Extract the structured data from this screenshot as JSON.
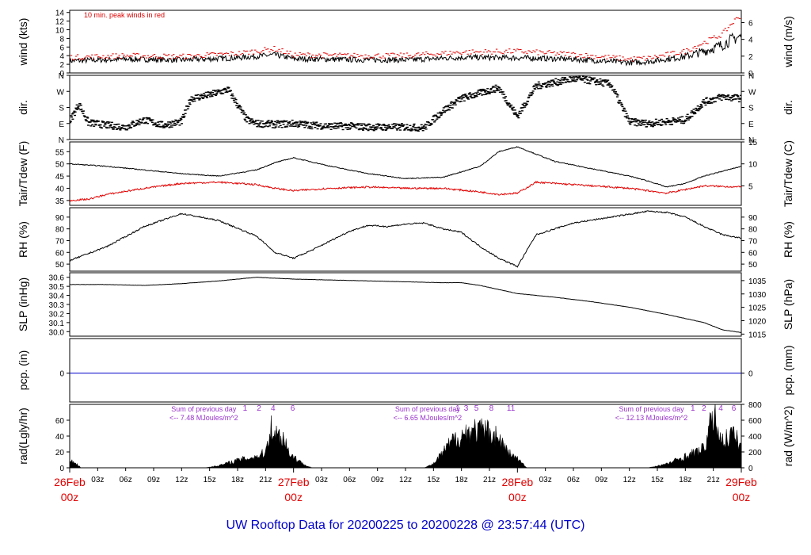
{
  "title": "UW Rooftop Data for 20200225  to  20200228 @ 23:57:44  (UTC)",
  "colors": {
    "primary": "#000000",
    "peak": "#e00000",
    "dewpoint": "#e00000",
    "precip": "#0000cc",
    "annotation": "#9933cc",
    "date": "#e00000",
    "title": "#0000cc"
  },
  "chart_data": {
    "type": "line",
    "x_hours": [
      0,
      72
    ],
    "x_tick_labels": [
      "03z",
      "06z",
      "09z",
      "12z",
      "15z",
      "18z",
      "21z",
      "03z",
      "06z",
      "09z",
      "12z",
      "15z",
      "18z",
      "21z",
      "03z",
      "06z",
      "09z",
      "12z",
      "15z",
      "18z",
      "21z"
    ],
    "x_tick_hours": [
      3,
      6,
      9,
      12,
      15,
      18,
      21,
      27,
      30,
      33,
      36,
      39,
      42,
      45,
      51,
      54,
      57,
      60,
      63,
      66,
      69
    ],
    "date_labels": [
      {
        "hour": 0,
        "date": "26Feb",
        "time": "00z"
      },
      {
        "hour": 24,
        "date": "27Feb",
        "time": "00z"
      },
      {
        "hour": 48,
        "date": "28Feb",
        "time": "00z"
      },
      {
        "hour": 72,
        "date": "29Feb",
        "time": "00z"
      }
    ],
    "panels": [
      {
        "id": "wind",
        "left_label": "wind (kts)",
        "right_label": "wind (m/s)",
        "ylim": [
          0,
          14.5
        ],
        "left_ticks": [
          "0",
          "2",
          "4",
          "6",
          "8",
          "10",
          "12",
          "14"
        ],
        "right_ticks": [
          "0",
          "2",
          "4",
          "6"
        ],
        "annotation": "10 min. peak winds in red",
        "series": [
          {
            "key": "speed",
            "x": [
              0,
              6,
              12,
              18,
              22,
              24,
              30,
              36,
              42,
              48,
              54,
              60,
              62,
              66,
              68,
              70,
              71,
              72
            ],
            "y": [
              2.8,
              3.2,
              3.0,
              3.5,
              4.2,
              3.3,
              3.1,
              3.0,
              3.6,
              3.5,
              3.2,
              2.4,
              2.6,
              3.8,
              5.0,
              6.5,
              7.8,
              8.5
            ]
          },
          {
            "key": "peak",
            "x": [
              0,
              6,
              12,
              18,
              22,
              24,
              30,
              36,
              42,
              48,
              54,
              60,
              62,
              66,
              68,
              70,
              71,
              72
            ],
            "y": [
              3.6,
              4.0,
              3.8,
              4.5,
              5.6,
              4.2,
              4.0,
              4.0,
              4.8,
              5.0,
              4.3,
              3.2,
              3.4,
              5.0,
              7.0,
              9.0,
              11.5,
              13.5
            ]
          }
        ]
      },
      {
        "id": "dir",
        "left_label": "dir.",
        "right_label": "dir.",
        "ylim": [
          0,
          360
        ],
        "left_ticks": [
          "N",
          "E",
          "S",
          "W",
          "N"
        ],
        "right_ticks": [
          "N",
          "E",
          "S",
          "W",
          "N"
        ],
        "series": [
          {
            "key": "direction",
            "x": [
              0,
              1,
              2,
              4,
              6,
              8,
              10,
              12,
              13,
              15,
              17,
              19,
              20,
              22,
              24,
              26,
              28,
              30,
              32,
              34,
              36,
              38,
              40,
              42,
              44,
              46,
              48,
              50,
              52,
              54,
              56,
              58,
              60,
              62,
              64,
              66,
              68,
              70,
              72
            ],
            "y": [
              100,
              200,
              95,
              80,
              70,
              110,
              80,
              100,
              230,
              250,
              280,
              110,
              90,
              85,
              90,
              80,
              75,
              75,
              70,
              70,
              70,
              65,
              160,
              230,
              260,
              290,
              130,
              300,
              320,
              340,
              330,
              310,
              100,
              90,
              100,
              110,
              210,
              240,
              230
            ]
          }
        ]
      },
      {
        "id": "temp",
        "left_label": "Tair/Tdew (F)",
        "right_label": "Tair/Tdew (C)",
        "ylim": [
          33,
          59
        ],
        "left_ticks": [
          "35",
          "40",
          "45",
          "50",
          "55"
        ],
        "right_ticks": [
          "5",
          "10",
          "15"
        ],
        "series": [
          {
            "key": "tair",
            "x": [
              0,
              4,
              8,
              12,
              16,
              20,
              22,
              24,
              28,
              32,
              36,
              40,
              44,
              46,
              48,
              52,
              56,
              60,
              62,
              64,
              66,
              68,
              72
            ],
            "y": [
              50,
              49,
              47.5,
              46,
              45,
              47.5,
              50.5,
              52.5,
              49,
              46,
              44,
              44.5,
              49,
              55,
              57,
              51,
              48,
              45,
              43,
              40.5,
              42,
              45,
              49
            ]
          },
          {
            "key": "tdew",
            "x": [
              0,
              2,
              4,
              8,
              12,
              16,
              20,
              22,
              24,
              28,
              32,
              36,
              40,
              44,
              46,
              48,
              50,
              54,
              60,
              62,
              64,
              68,
              72
            ],
            "y": [
              35,
              35.5,
              37.5,
              40,
              42,
              42.5,
              41.5,
              40,
              39,
              40,
              40.5,
              40,
              40,
              38.5,
              37.5,
              38,
              42.5,
              41.5,
              40,
              39,
              38,
              41,
              40.5
            ]
          }
        ]
      },
      {
        "id": "rh",
        "left_label": "RH (%)",
        "right_label": "RH (%)",
        "ylim": [
          44,
          98
        ],
        "left_ticks": [
          "50",
          "60",
          "70",
          "80",
          "90"
        ],
        "right_ticks": [
          "50",
          "60",
          "70",
          "80",
          "90"
        ],
        "series": [
          {
            "key": "rh",
            "x": [
              0,
              4,
              8,
              12,
              16,
              20,
              22,
              24,
              26,
              28,
              30,
              32,
              34,
              36,
              38,
              40,
              42,
              44,
              46,
              48,
              50,
              54,
              58,
              62,
              64,
              66,
              68,
              70,
              72
            ],
            "y": [
              53,
              65,
              82,
              93,
              87,
              74,
              60,
              55,
              62,
              70,
              78,
              83,
              82,
              84,
              85,
              80,
              77,
              65,
              55,
              48,
              75,
              85,
              90,
              95,
              94,
              90,
              82,
              75,
              72
            ]
          }
        ]
      },
      {
        "id": "slp",
        "left_label": "SLP (inHg)",
        "right_label": "SLP (hPa)",
        "ylim": [
          29.95,
          30.65
        ],
        "left_ticks": [
          "30.0",
          "30.1",
          "30.2",
          "30.3",
          "30.4",
          "30.5",
          "30.6"
        ],
        "right_ticks": [
          "1015",
          "1020",
          "1025",
          "1030",
          "1035"
        ],
        "series": [
          {
            "key": "slp",
            "x": [
              0,
              4,
              8,
              12,
              16,
              20,
              22,
              24,
              28,
              32,
              36,
              40,
              42,
              44,
              48,
              52,
              56,
              60,
              64,
              68,
              70,
              72
            ],
            "y": [
              30.52,
              30.52,
              30.51,
              30.53,
              30.56,
              30.6,
              30.59,
              30.58,
              30.57,
              30.56,
              30.55,
              30.54,
              30.54,
              30.51,
              30.42,
              30.38,
              30.33,
              30.27,
              30.19,
              30.1,
              30.02,
              29.99
            ]
          }
        ]
      },
      {
        "id": "pcp",
        "left_label": "pcp. (in)",
        "right_label": "pcp. (mm)",
        "ylim": [
          -1,
          1.2
        ],
        "left_ticks": [
          "0"
        ],
        "right_ticks": [
          "0"
        ],
        "series": [
          {
            "key": "pcp",
            "x": [
              0,
              72
            ],
            "y": [
              0,
              0
            ]
          }
        ]
      },
      {
        "id": "rad",
        "left_label": "rad(Lgly/hr)",
        "right_label": "rad (W/m^2)",
        "ylim": [
          0,
          80
        ],
        "left_ticks": [
          "0",
          "20",
          "40",
          "60"
        ],
        "right_ticks": [
          "0",
          "200",
          "400",
          "600",
          "800"
        ],
        "day_sums": [
          {
            "hour": 8,
            "line1": "Sum of previous day",
            "line2": "<-- 7.48 MJoules/m^2"
          },
          {
            "hour": 32,
            "line1": "Sum of previous day",
            "line2": "<-- 6.65 MJoules/m^2"
          },
          {
            "hour": 56,
            "line1": "Sum of previous day",
            "line2": "<-- 12.13 MJoules/m^2"
          }
        ],
        "hour_marks": [
          {
            "hour": 18.8,
            "label": "1"
          },
          {
            "hour": 20.3,
            "label": "2"
          },
          {
            "hour": 21.8,
            "label": "4"
          },
          {
            "hour": 23.9,
            "label": "6"
          },
          {
            "hour": 41.6,
            "label": "1"
          },
          {
            "hour": 42.5,
            "label": "3"
          },
          {
            "hour": 43.6,
            "label": "5"
          },
          {
            "hour": 45.2,
            "label": "8"
          },
          {
            "hour": 47.3,
            "label": "11"
          },
          {
            "hour": 66.8,
            "label": "1"
          },
          {
            "hour": 68.0,
            "label": "2"
          },
          {
            "hour": 69.8,
            "label": "4"
          },
          {
            "hour": 71.2,
            "label": "6"
          }
        ],
        "series": [
          {
            "key": "rad",
            "x": [
              0,
              0.5,
              1.2,
              14.5,
              16,
              18,
              20,
              21,
              21.5,
              22,
              23,
              23.5,
              24,
              25,
              26,
              38,
              39,
              41,
              43,
              45,
              46,
              47,
              48,
              49,
              62,
              64,
              66,
              68,
              69,
              70,
              71,
              72
            ],
            "y": [
              10,
              8,
              0,
              0,
              3,
              10,
              15,
              20,
              55,
              45,
              40,
              20,
              15,
              5,
              0,
              0,
              5,
              35,
              50,
              48,
              40,
              20,
              12,
              0,
              0,
              5,
              15,
              25,
              70,
              35,
              45,
              30
            ]
          }
        ]
      }
    ]
  }
}
